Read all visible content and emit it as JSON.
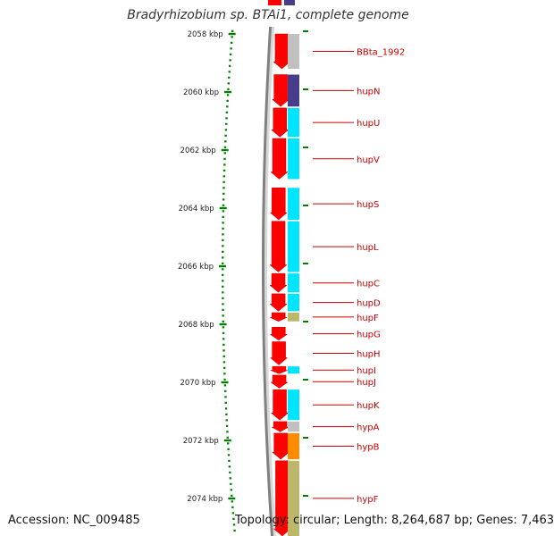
{
  "title": "Bradyrhizobium sp. BTAi1, complete genome",
  "accession": "Accession: NC_009485",
  "topology": "Topology: circular; Length: 8,264,687 bp; Genes: 7,463",
  "colors": {
    "cds": "#ff0000",
    "cog_gray": "#c0c0c0",
    "cog_blue": "#483d8b",
    "cog_cyan": "#00e5ff",
    "cog_khaki": "#bdb76b",
    "cog_orange": "#ff8c00",
    "tick": "#008000",
    "label": "#cc0000",
    "backbone": "#808080"
  },
  "ruler": {
    "unit": "kbp",
    "ticks": [
      {
        "kbp": 2058,
        "label": "2058 kbp"
      },
      {
        "kbp": 2060,
        "label": "2060 kbp"
      },
      {
        "kbp": 2062,
        "label": "2062 kbp"
      },
      {
        "kbp": 2064,
        "label": "2064 kbp"
      },
      {
        "kbp": 2066,
        "label": "2066 kbp"
      },
      {
        "kbp": 2068,
        "label": "2068 kbp"
      },
      {
        "kbp": 2070,
        "label": "2070 kbp"
      },
      {
        "kbp": 2072,
        "label": "2072 kbp"
      },
      {
        "kbp": 2074,
        "label": "2074 kbp"
      }
    ]
  },
  "genes": [
    {
      "name": "BBta_1992",
      "start": 2058.0,
      "end": 2059.2,
      "strand": "+",
      "cog": "cog_gray"
    },
    {
      "name": "hupN",
      "start": 2059.4,
      "end": 2060.5,
      "strand": "+",
      "cog": "cog_blue"
    },
    {
      "name": "hupU",
      "start": 2060.55,
      "end": 2061.55,
      "strand": "+",
      "cog": "cog_cyan"
    },
    {
      "name": "hupV",
      "start": 2061.6,
      "end": 2063.0,
      "strand": "+",
      "cog": "cog_cyan"
    },
    {
      "name": "hupS",
      "start": 2063.3,
      "end": 2064.4,
      "strand": "+",
      "cog": "cog_cyan"
    },
    {
      "name": "hupL",
      "start": 2064.45,
      "end": 2066.2,
      "strand": "+",
      "cog": "cog_cyan"
    },
    {
      "name": "hupC",
      "start": 2066.25,
      "end": 2066.9,
      "strand": "+",
      "cog": "cog_cyan"
    },
    {
      "name": "hupD",
      "start": 2066.95,
      "end": 2067.55,
      "strand": "+",
      "cog": "cog_cyan"
    },
    {
      "name": "hupF",
      "start": 2067.6,
      "end": 2067.9,
      "strand": "+",
      "cog": "cog_khaki"
    },
    {
      "name": "hupG",
      "start": 2068.1,
      "end": 2068.55,
      "strand": "+",
      "cog": ""
    },
    {
      "name": "hupH",
      "start": 2068.6,
      "end": 2069.4,
      "strand": "+",
      "cog": ""
    },
    {
      "name": "hupI",
      "start": 2069.45,
      "end": 2069.7,
      "strand": "+",
      "cog": "cog_cyan"
    },
    {
      "name": "hupJ",
      "start": 2069.75,
      "end": 2070.2,
      "strand": "+",
      "cog": ""
    },
    {
      "name": "hupK",
      "start": 2070.25,
      "end": 2071.3,
      "strand": "+",
      "cog": "cog_cyan"
    },
    {
      "name": "hypA",
      "start": 2071.35,
      "end": 2071.7,
      "strand": "+",
      "cog": "cog_gray"
    },
    {
      "name": "hypB",
      "start": 2071.75,
      "end": 2072.65,
      "strand": "+",
      "cog": "cog_orange"
    },
    {
      "name": "hypF",
      "start": 2072.7,
      "end": 2075.5,
      "strand": "+",
      "cog": "cog_khaki"
    }
  ]
}
